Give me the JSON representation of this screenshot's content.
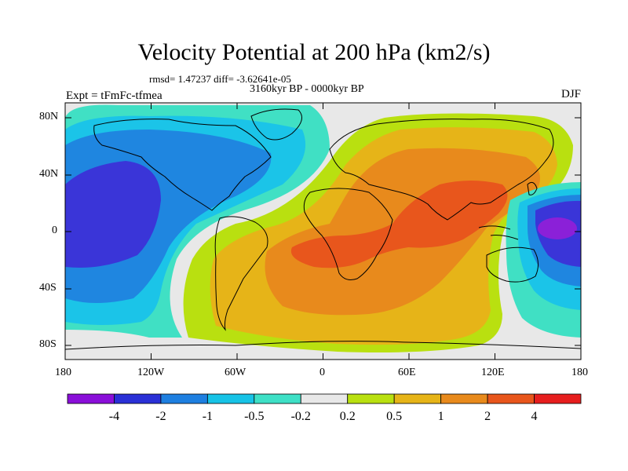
{
  "title": "Velocity Potential at 200 hPa (km2/s)",
  "stats": "rmsd= 1.47237 diff= -3.62641e-05",
  "period": "3160kyr BP - 0000kyr BP",
  "experiment": "Expt = tFmFc-tfmea",
  "season": "DJF",
  "lat_ticks": [
    "80N",
    "40N",
    "0",
    "40S",
    "80S"
  ],
  "lon_ticks": [
    "180",
    "120W",
    "60W",
    "0",
    "60E",
    "120E",
    "180"
  ],
  "colorbar": {
    "colors": [
      "#8a0fd9",
      "#2a30d6",
      "#1e7fe0",
      "#17c3e6",
      "#3ee0c6",
      "#e8e8e8",
      "#b9e010",
      "#e6b418",
      "#e88a1c",
      "#e8561c",
      "#e61e1e"
    ],
    "labels": [
      "-4",
      "-2",
      "-1",
      "-0.5",
      "-0.2",
      "0.2",
      "0.5",
      "1",
      "2",
      "4"
    ]
  },
  "palette": {
    "deep_blue": "#3a35d8",
    "blue": "#1f86e0",
    "cyan": "#1bc4e8",
    "teal": "#40e0c4",
    "grey": "#e8e8e8",
    "lime": "#b9e010",
    "orange_yellow": "#e6b418",
    "orange": "#e88a1c",
    "red_orange": "#e8561c",
    "purple": "#8b20d8"
  }
}
